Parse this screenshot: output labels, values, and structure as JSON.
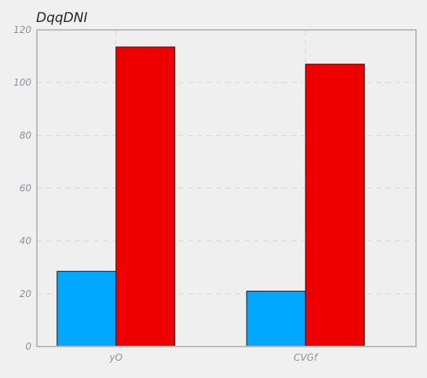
{
  "chart_data": {
    "type": "bar",
    "title": "DqqDNI",
    "xlabel": "",
    "ylabel": "",
    "categories": [
      "yO",
      "CVGf"
    ],
    "series": [
      {
        "values": [
          28.5,
          21
        ],
        "color": "#00a8ff"
      },
      {
        "values": [
          113.5,
          107
        ],
        "color": "#ee0000"
      }
    ],
    "ylim": [
      0,
      120
    ],
    "yticks": [
      0,
      20,
      40,
      60,
      80,
      100,
      120
    ],
    "grid": true,
    "legend": "none"
  },
  "colors": {
    "background": "#f0f0f0",
    "plot_background": "#efefef",
    "frame": "#bdbdbd",
    "grid": "#d6d6d6",
    "tick_text": "#8a929a"
  }
}
